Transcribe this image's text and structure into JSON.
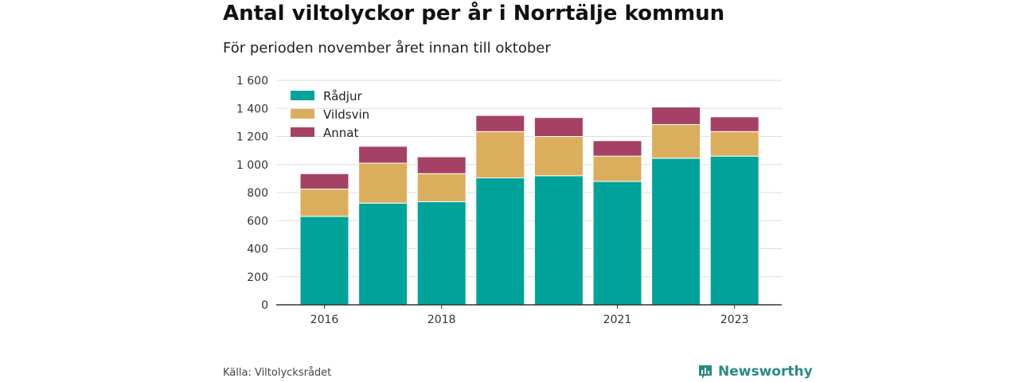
{
  "chart_data": {
    "type": "bar",
    "stacked": true,
    "title": "Antal viltolyckor per år i Norrtälje kommun",
    "subtitle": "För perioden november året innan till oktober",
    "categories": [
      "2016",
      "2017",
      "2018",
      "2019",
      "2020",
      "2021",
      "2022",
      "2023"
    ],
    "x_tick_labels": [
      "2016",
      "",
      "2018",
      "",
      "",
      "2021",
      "",
      "2023"
    ],
    "series": [
      {
        "name": "Rådjur",
        "color": "#00a39a",
        "values": [
          630,
          725,
          735,
          905,
          920,
          880,
          1045,
          1060
        ]
      },
      {
        "name": "Vildsvin",
        "color": "#dbae5d",
        "values": [
          195,
          285,
          200,
          330,
          280,
          180,
          240,
          175
        ]
      },
      {
        "name": "Annat",
        "color": "#a64166",
        "values": [
          110,
          120,
          120,
          115,
          135,
          110,
          125,
          105
        ]
      }
    ],
    "ylim": [
      0,
      1600
    ],
    "yticks": [
      0,
      200,
      400,
      600,
      800,
      1000,
      1200,
      1400,
      1600
    ],
    "ytick_labels": [
      "0",
      "200",
      "400",
      "600",
      "800",
      "1 000",
      "1 200",
      "1 400",
      "1 600"
    ],
    "xlabel": "",
    "ylabel": "",
    "grid": true,
    "legend_position": "top-left"
  },
  "source": "Källa: Viltolycksrådet",
  "brand": {
    "name": "Newsworthy",
    "icon": "bar-chart-speech-icon",
    "color": "#2a8a84"
  },
  "colors": {
    "gridline": "#dddddd",
    "axis": "#333333",
    "text": "#333333"
  }
}
